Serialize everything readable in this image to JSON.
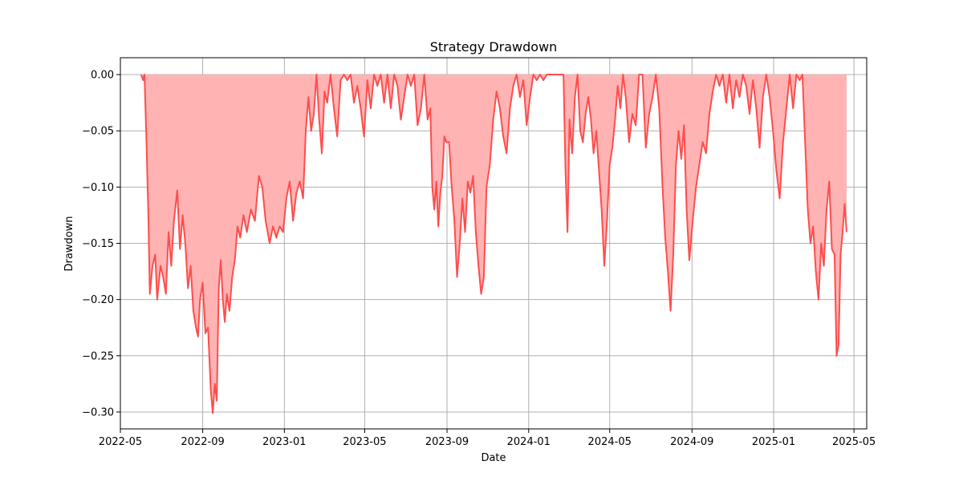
{
  "chart_data": {
    "type": "area",
    "title": "Strategy Drawdown",
    "xlabel": "Date",
    "ylabel": "Drawdown",
    "x_range": [
      "2022-05-01",
      "2025-05-20"
    ],
    "ylim": [
      -0.315,
      0.015
    ],
    "x_ticks": [
      "2022-05",
      "2022-09",
      "2023-01",
      "2023-05",
      "2023-09",
      "2024-01",
      "2024-05",
      "2024-09",
      "2025-01",
      "2025-05"
    ],
    "y_ticks": [
      0.0,
      -0.05,
      -0.1,
      -0.15,
      -0.2,
      -0.25,
      -0.3
    ],
    "y_tick_labels": [
      "0.00",
      "−0.05",
      "−0.10",
      "−0.15",
      "−0.20",
      "−0.25",
      "−0.30"
    ],
    "grid": true,
    "colors": {
      "line": "#ff4d4d",
      "fill": "#ffb3b3",
      "grid": "#b0b0b0"
    },
    "series": [
      {
        "points": [
          [
            "2022-06-01",
            0.0
          ],
          [
            "2022-06-04",
            -0.005
          ],
          [
            "2022-06-06",
            0.0
          ],
          [
            "2022-06-09",
            -0.06
          ],
          [
            "2022-06-12",
            -0.13
          ],
          [
            "2022-06-14",
            -0.195
          ],
          [
            "2022-06-18",
            -0.17
          ],
          [
            "2022-06-22",
            -0.16
          ],
          [
            "2022-06-25",
            -0.2
          ],
          [
            "2022-06-30",
            -0.17
          ],
          [
            "2022-07-04",
            -0.18
          ],
          [
            "2022-07-08",
            -0.195
          ],
          [
            "2022-07-12",
            -0.14
          ],
          [
            "2022-07-16",
            -0.17
          ],
          [
            "2022-07-20",
            -0.13
          ],
          [
            "2022-07-25",
            -0.103
          ],
          [
            "2022-07-29",
            -0.155
          ],
          [
            "2022-08-02",
            -0.125
          ],
          [
            "2022-08-06",
            -0.15
          ],
          [
            "2022-08-10",
            -0.19
          ],
          [
            "2022-08-14",
            -0.17
          ],
          [
            "2022-08-18",
            -0.21
          ],
          [
            "2022-08-22",
            -0.225
          ],
          [
            "2022-08-25",
            -0.233
          ],
          [
            "2022-08-28",
            -0.2
          ],
          [
            "2022-09-01",
            -0.185
          ],
          [
            "2022-09-05",
            -0.23
          ],
          [
            "2022-09-09",
            -0.225
          ],
          [
            "2022-09-13",
            -0.28
          ],
          [
            "2022-09-16",
            -0.301
          ],
          [
            "2022-09-19",
            -0.275
          ],
          [
            "2022-09-22",
            -0.29
          ],
          [
            "2022-09-25",
            -0.19
          ],
          [
            "2022-09-28",
            -0.165
          ],
          [
            "2022-10-01",
            -0.2
          ],
          [
            "2022-10-04",
            -0.22
          ],
          [
            "2022-10-07",
            -0.195
          ],
          [
            "2022-10-11",
            -0.21
          ],
          [
            "2022-10-15",
            -0.18
          ],
          [
            "2022-10-19",
            -0.165
          ],
          [
            "2022-10-23",
            -0.135
          ],
          [
            "2022-10-27",
            -0.145
          ],
          [
            "2022-11-01",
            -0.125
          ],
          [
            "2022-11-06",
            -0.14
          ],
          [
            "2022-11-12",
            -0.12
          ],
          [
            "2022-11-18",
            -0.13
          ],
          [
            "2022-11-24",
            -0.09
          ],
          [
            "2022-11-29",
            -0.1
          ],
          [
            "2022-12-04",
            -0.13
          ],
          [
            "2022-12-10",
            -0.15
          ],
          [
            "2022-12-15",
            -0.135
          ],
          [
            "2022-12-20",
            -0.145
          ],
          [
            "2022-12-25",
            -0.135
          ],
          [
            "2022-12-30",
            -0.14
          ],
          [
            "2023-01-04",
            -0.11
          ],
          [
            "2023-01-09",
            -0.095
          ],
          [
            "2023-01-14",
            -0.13
          ],
          [
            "2023-01-19",
            -0.105
          ],
          [
            "2023-01-24",
            -0.095
          ],
          [
            "2023-01-29",
            -0.11
          ],
          [
            "2023-02-02",
            -0.05
          ],
          [
            "2023-02-06",
            -0.02
          ],
          [
            "2023-02-10",
            -0.05
          ],
          [
            "2023-02-14",
            -0.035
          ],
          [
            "2023-02-18",
            0.0
          ],
          [
            "2023-02-22",
            -0.04
          ],
          [
            "2023-02-26",
            -0.07
          ],
          [
            "2023-03-02",
            -0.015
          ],
          [
            "2023-03-06",
            -0.025
          ],
          [
            "2023-03-11",
            0.0
          ],
          [
            "2023-03-16",
            -0.03
          ],
          [
            "2023-03-21",
            -0.055
          ],
          [
            "2023-03-26",
            -0.005
          ],
          [
            "2023-03-31",
            0.0
          ],
          [
            "2023-04-05",
            -0.005
          ],
          [
            "2023-04-10",
            0.0
          ],
          [
            "2023-04-15",
            -0.025
          ],
          [
            "2023-04-20",
            -0.01
          ],
          [
            "2023-04-25",
            -0.03
          ],
          [
            "2023-04-30",
            -0.055
          ],
          [
            "2023-05-05",
            -0.005
          ],
          [
            "2023-05-10",
            -0.03
          ],
          [
            "2023-05-15",
            0.0
          ],
          [
            "2023-05-20",
            -0.01
          ],
          [
            "2023-05-25",
            0.0
          ],
          [
            "2023-05-30",
            -0.025
          ],
          [
            "2023-06-04",
            0.0
          ],
          [
            "2023-06-09",
            -0.03
          ],
          [
            "2023-06-14",
            0.0
          ],
          [
            "2023-06-19",
            -0.01
          ],
          [
            "2023-06-24",
            -0.04
          ],
          [
            "2023-06-29",
            -0.02
          ],
          [
            "2023-07-04",
            0.0
          ],
          [
            "2023-07-09",
            -0.01
          ],
          [
            "2023-07-14",
            0.0
          ],
          [
            "2023-07-19",
            -0.045
          ],
          [
            "2023-07-24",
            -0.03
          ],
          [
            "2023-07-29",
            0.0
          ],
          [
            "2023-08-03",
            -0.04
          ],
          [
            "2023-08-07",
            -0.03
          ],
          [
            "2023-08-10",
            -0.1
          ],
          [
            "2023-08-13",
            -0.12
          ],
          [
            "2023-08-16",
            -0.095
          ],
          [
            "2023-08-19",
            -0.135
          ],
          [
            "2023-08-22",
            -0.105
          ],
          [
            "2023-08-25",
            -0.09
          ],
          [
            "2023-08-28",
            -0.055
          ],
          [
            "2023-08-31",
            -0.06
          ],
          [
            "2023-09-04",
            -0.06
          ],
          [
            "2023-09-08",
            -0.1
          ],
          [
            "2023-09-12",
            -0.13
          ],
          [
            "2023-09-16",
            -0.18
          ],
          [
            "2023-09-20",
            -0.15
          ],
          [
            "2023-09-24",
            -0.11
          ],
          [
            "2023-09-28",
            -0.14
          ],
          [
            "2023-10-02",
            -0.095
          ],
          [
            "2023-10-06",
            -0.105
          ],
          [
            "2023-10-10",
            -0.09
          ],
          [
            "2023-10-14",
            -0.14
          ],
          [
            "2023-10-18",
            -0.17
          ],
          [
            "2023-10-22",
            -0.195
          ],
          [
            "2023-10-26",
            -0.18
          ],
          [
            "2023-10-30",
            -0.1
          ],
          [
            "2023-11-04",
            -0.08
          ],
          [
            "2023-11-09",
            -0.04
          ],
          [
            "2023-11-14",
            -0.015
          ],
          [
            "2023-11-19",
            -0.03
          ],
          [
            "2023-11-24",
            -0.055
          ],
          [
            "2023-11-29",
            -0.07
          ],
          [
            "2023-12-04",
            -0.03
          ],
          [
            "2023-12-09",
            -0.01
          ],
          [
            "2023-12-14",
            0.0
          ],
          [
            "2023-12-19",
            -0.02
          ],
          [
            "2023-12-24",
            -0.005
          ],
          [
            "2023-12-29",
            -0.045
          ],
          [
            "2024-01-03",
            -0.02
          ],
          [
            "2024-01-08",
            0.0
          ],
          [
            "2024-01-13",
            -0.005
          ],
          [
            "2024-01-18",
            0.0
          ],
          [
            "2024-01-23",
            -0.005
          ],
          [
            "2024-01-28",
            0.0
          ],
          [
            "2024-02-02",
            0.0
          ],
          [
            "2024-02-07",
            0.0
          ],
          [
            "2024-02-12",
            0.0
          ],
          [
            "2024-02-17",
            0.0
          ],
          [
            "2024-02-22",
            0.0
          ],
          [
            "2024-02-25",
            -0.085
          ],
          [
            "2024-02-28",
            -0.14
          ],
          [
            "2024-03-02",
            -0.04
          ],
          [
            "2024-03-06",
            -0.07
          ],
          [
            "2024-03-10",
            -0.02
          ],
          [
            "2024-03-14",
            0.0
          ],
          [
            "2024-03-18",
            -0.05
          ],
          [
            "2024-03-22",
            -0.06
          ],
          [
            "2024-03-26",
            -0.035
          ],
          [
            "2024-03-30",
            -0.02
          ],
          [
            "2024-04-03",
            -0.04
          ],
          [
            "2024-04-07",
            -0.07
          ],
          [
            "2024-04-11",
            -0.05
          ],
          [
            "2024-04-15",
            -0.085
          ],
          [
            "2024-04-19",
            -0.12
          ],
          [
            "2024-04-23",
            -0.17
          ],
          [
            "2024-04-27",
            -0.13
          ],
          [
            "2024-05-01",
            -0.08
          ],
          [
            "2024-05-05",
            -0.065
          ],
          [
            "2024-05-09",
            -0.04
          ],
          [
            "2024-05-13",
            -0.01
          ],
          [
            "2024-05-17",
            -0.03
          ],
          [
            "2024-05-21",
            0.0
          ],
          [
            "2024-05-25",
            -0.02
          ],
          [
            "2024-05-30",
            -0.06
          ],
          [
            "2024-06-04",
            -0.035
          ],
          [
            "2024-06-09",
            -0.045
          ],
          [
            "2024-06-14",
            0.0
          ],
          [
            "2024-06-19",
            0.0
          ],
          [
            "2024-06-24",
            -0.065
          ],
          [
            "2024-06-29",
            -0.035
          ],
          [
            "2024-07-04",
            -0.02
          ],
          [
            "2024-07-09",
            0.0
          ],
          [
            "2024-07-14",
            -0.03
          ],
          [
            "2024-07-19",
            -0.1
          ],
          [
            "2024-07-23",
            -0.145
          ],
          [
            "2024-07-27",
            -0.175
          ],
          [
            "2024-07-31",
            -0.21
          ],
          [
            "2024-08-04",
            -0.16
          ],
          [
            "2024-08-08",
            -0.08
          ],
          [
            "2024-08-12",
            -0.05
          ],
          [
            "2024-08-16",
            -0.075
          ],
          [
            "2024-08-20",
            -0.045
          ],
          [
            "2024-08-24",
            -0.12
          ],
          [
            "2024-08-28",
            -0.165
          ],
          [
            "2024-09-02",
            -0.13
          ],
          [
            "2024-09-07",
            -0.1
          ],
          [
            "2024-09-12",
            -0.08
          ],
          [
            "2024-09-17",
            -0.06
          ],
          [
            "2024-09-22",
            -0.07
          ],
          [
            "2024-09-27",
            -0.035
          ],
          [
            "2024-10-02",
            -0.015
          ],
          [
            "2024-10-07",
            0.0
          ],
          [
            "2024-10-12",
            -0.01
          ],
          [
            "2024-10-17",
            0.0
          ],
          [
            "2024-10-22",
            -0.025
          ],
          [
            "2024-10-27",
            0.0
          ],
          [
            "2024-11-01",
            -0.03
          ],
          [
            "2024-11-06",
            -0.005
          ],
          [
            "2024-11-11",
            -0.02
          ],
          [
            "2024-11-16",
            0.0
          ],
          [
            "2024-11-21",
            -0.01
          ],
          [
            "2024-11-26",
            -0.035
          ],
          [
            "2024-12-01",
            -0.005
          ],
          [
            "2024-12-06",
            -0.03
          ],
          [
            "2024-12-11",
            -0.065
          ],
          [
            "2024-12-16",
            -0.02
          ],
          [
            "2024-12-21",
            0.0
          ],
          [
            "2024-12-26",
            -0.02
          ],
          [
            "2024-12-31",
            -0.05
          ],
          [
            "2025-01-05",
            -0.085
          ],
          [
            "2025-01-10",
            -0.11
          ],
          [
            "2025-01-15",
            -0.06
          ],
          [
            "2025-01-20",
            -0.03
          ],
          [
            "2025-01-25",
            0.0
          ],
          [
            "2025-01-30",
            -0.03
          ],
          [
            "2025-02-04",
            0.0
          ],
          [
            "2025-02-09",
            -0.005
          ],
          [
            "2025-02-13",
            0.0
          ],
          [
            "2025-02-17",
            -0.06
          ],
          [
            "2025-02-21",
            -0.12
          ],
          [
            "2025-02-25",
            -0.15
          ],
          [
            "2025-03-01",
            -0.135
          ],
          [
            "2025-03-05",
            -0.175
          ],
          [
            "2025-03-09",
            -0.2
          ],
          [
            "2025-03-13",
            -0.15
          ],
          [
            "2025-03-17",
            -0.17
          ],
          [
            "2025-03-21",
            -0.12
          ],
          [
            "2025-03-25",
            -0.095
          ],
          [
            "2025-03-29",
            -0.155
          ],
          [
            "2025-04-02",
            -0.16
          ],
          [
            "2025-04-05",
            -0.25
          ],
          [
            "2025-04-08",
            -0.24
          ],
          [
            "2025-04-11",
            -0.16
          ],
          [
            "2025-04-14",
            -0.14
          ],
          [
            "2025-04-17",
            -0.115
          ],
          [
            "2025-04-20",
            -0.14
          ]
        ]
      }
    ]
  }
}
